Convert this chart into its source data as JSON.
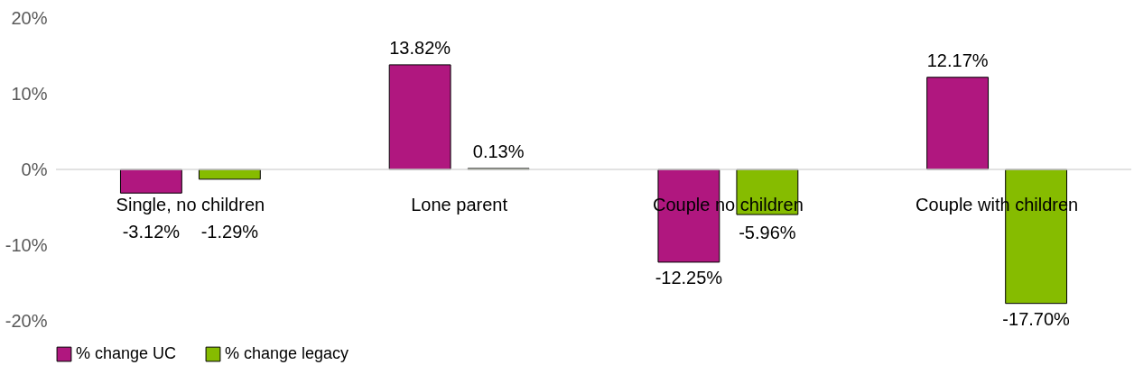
{
  "chart_data": {
    "type": "bar",
    "categories": [
      "Single, no children",
      "Lone parent",
      "Couple no children",
      "Couple with children"
    ],
    "series": [
      {
        "name": "% change UC",
        "color": "#b0177f",
        "values": [
          -3.12,
          13.82,
          -12.25,
          12.17
        ],
        "value_labels": [
          "-3.12%",
          "13.82%",
          "-12.25%",
          "12.17%"
        ]
      },
      {
        "name": "% change legacy",
        "color": "#86bc00",
        "values": [
          -1.29,
          0.13,
          -5.96,
          -17.7
        ],
        "value_labels": [
          "-1.29%",
          "0.13%",
          "-5.96%",
          "-17.70%"
        ]
      }
    ],
    "ylim": [
      -20,
      20
    ],
    "yticks": [
      {
        "value": -20,
        "label": "-20%"
      },
      {
        "value": -10,
        "label": "-10%"
      },
      {
        "value": 0,
        "label": "0%"
      },
      {
        "value": 10,
        "label": "10%"
      },
      {
        "value": 20,
        "label": "20%"
      }
    ],
    "grid": false,
    "legend": "bottom"
  }
}
